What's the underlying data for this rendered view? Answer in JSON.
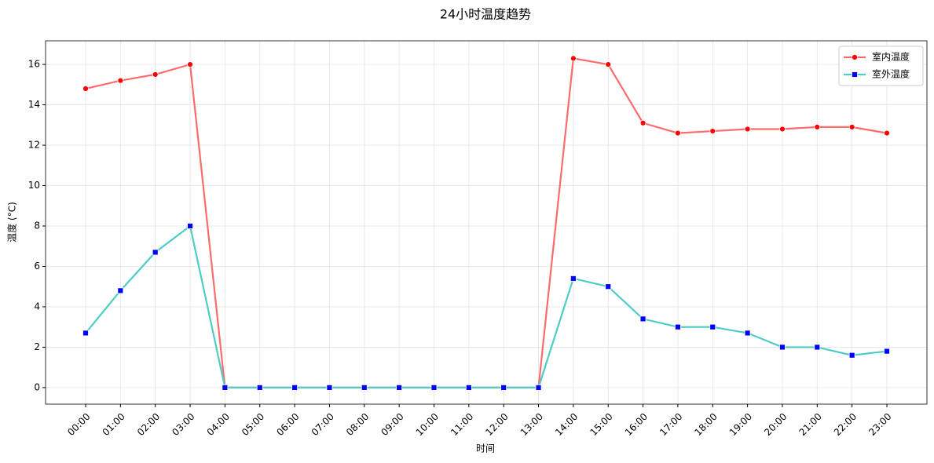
{
  "chart_data": {
    "type": "line",
    "title": "24小时温度趋势",
    "x_label": "时间",
    "y_label": "温度 (°C)",
    "categories": [
      "00:00",
      "01:00",
      "02:00",
      "03:00",
      "04:00",
      "05:00",
      "06:00",
      "07:00",
      "08:00",
      "09:00",
      "10:00",
      "11:00",
      "12:00",
      "13:00",
      "14:00",
      "15:00",
      "16:00",
      "17:00",
      "18:00",
      "19:00",
      "20:00",
      "21:00",
      "22:00",
      "23:00"
    ],
    "series": [
      {
        "name": "室内温度",
        "color": "#ff6b6b",
        "marker": "circle",
        "marker_color": "#ff0000",
        "values": [
          14.8,
          15.2,
          15.5,
          16.0,
          0,
          0,
          0,
          0,
          0,
          0,
          0,
          0,
          0,
          0,
          16.3,
          16.0,
          13.1,
          12.6,
          12.7,
          12.8,
          12.8,
          12.9,
          12.9,
          12.6
        ]
      },
      {
        "name": "室外温度",
        "color": "#4ecdc4",
        "marker": "square",
        "marker_color": "#0000ff",
        "values": [
          2.7,
          4.8,
          6.7,
          8.0,
          0,
          0,
          0,
          0,
          0,
          0,
          0,
          0,
          0,
          0,
          5.4,
          5.0,
          3.4,
          3.0,
          3.0,
          2.7,
          2.0,
          2.0,
          1.6,
          1.8
        ]
      }
    ],
    "ylim": [
      -0.82,
      17.17
    ],
    "yticks": [
      0,
      2,
      4,
      6,
      8,
      10,
      12,
      14,
      16
    ],
    "grid": true,
    "legend": "upper right"
  }
}
